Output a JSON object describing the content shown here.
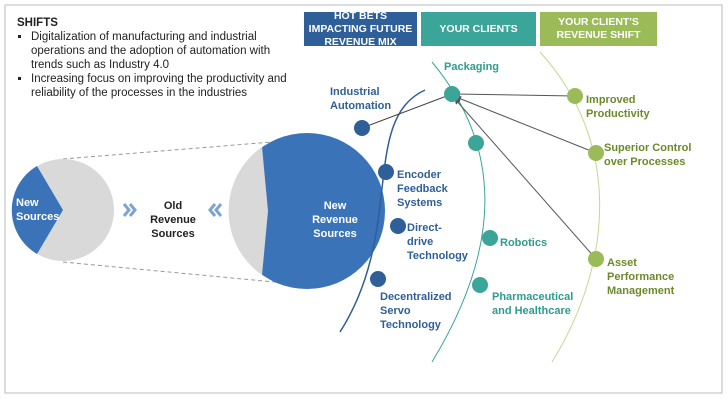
{
  "shifts": {
    "title": "SHIFTS",
    "bullets": [
      "Digitalization of manufacturing and industrial operations and the adoption of automation with trends such as Industry 4.0",
      "Increasing focus on improving the productivity and reliability of the processes in the industries"
    ]
  },
  "headers": [
    "HOT BETS IMPACTING FUTURE REVENUE MIX",
    "YOUR CLIENTS",
    "YOUR CLIENT'S REVENUE SHIFT"
  ],
  "revenue": {
    "old_pie_label": "New Sources",
    "old_label": "Old Revenue Sources",
    "new_pie_label": "New Revenue Sources"
  },
  "hot_bets": [
    "Industrial Automation",
    "Encoder Feedback Systems",
    "Direct-drive Technology",
    "Decentralized Servo Technology"
  ],
  "clients": [
    "Packaging",
    "Robotics",
    "Pharmaceutical and Healthcare"
  ],
  "revenue_shift": [
    "Improved Productivity",
    "Superior Control over Processes",
    "Asset Performance Management"
  ]
}
